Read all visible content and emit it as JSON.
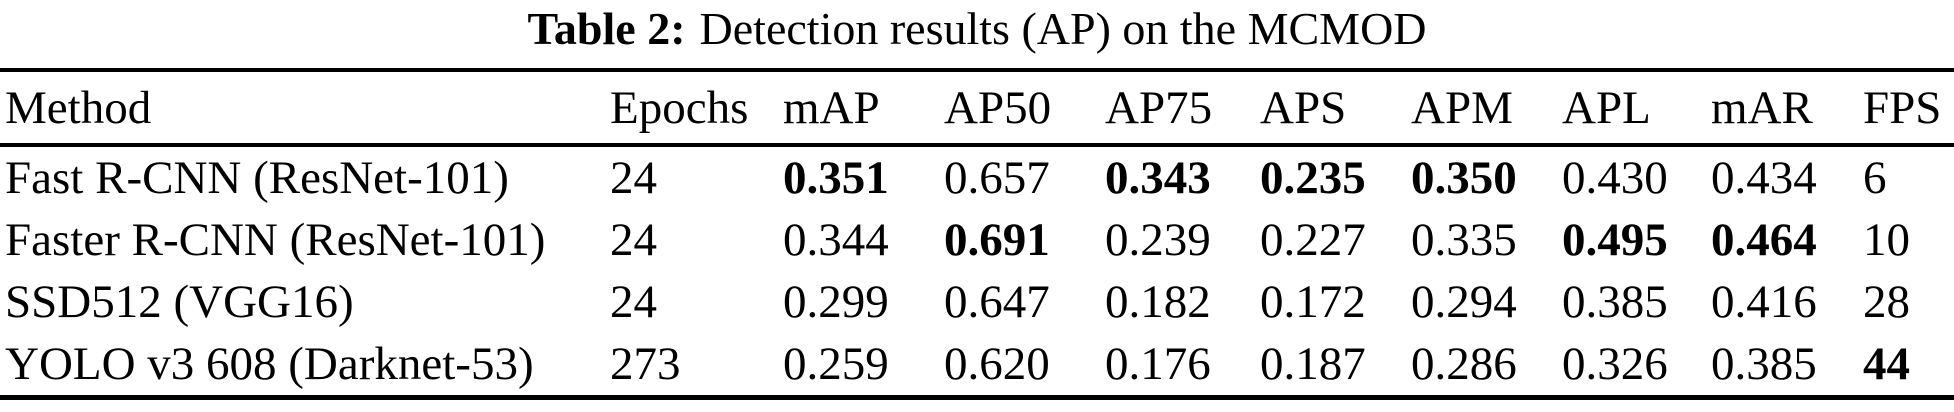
{
  "table": {
    "title": {
      "label": "Table 2:",
      "text": "Detection results (AP) on the MCMOD"
    },
    "columns": [
      "Method",
      "Epochs",
      "mAP",
      "AP50",
      "AP75",
      "APS",
      "APM",
      "APL",
      "mAR",
      "FPS"
    ],
    "rows": [
      {
        "cells": [
          "Fast R-CNN (ResNet-101)",
          "24",
          "0.351",
          "0.657",
          "0.343",
          "0.235",
          "0.350",
          "0.430",
          "0.434",
          "6"
        ],
        "bold": [
          2,
          4,
          5,
          6
        ]
      },
      {
        "cells": [
          "Faster R-CNN (ResNet-101)",
          "24",
          "0.344",
          "0.691",
          "0.239",
          "0.227",
          "0.335",
          "0.495",
          "0.464",
          "10"
        ],
        "bold": [
          3,
          7,
          8
        ]
      },
      {
        "cells": [
          "SSD512 (VGG16)",
          "24",
          "0.299",
          "0.647",
          "0.182",
          "0.172",
          "0.294",
          "0.385",
          "0.416",
          "28"
        ],
        "bold": []
      },
      {
        "cells": [
          "YOLO v3 608 (Darknet-53)",
          "273",
          "0.259",
          "0.620",
          "0.176",
          "0.187",
          "0.286",
          "0.326",
          "0.385",
          "44"
        ],
        "bold": [
          9
        ]
      }
    ]
  }
}
